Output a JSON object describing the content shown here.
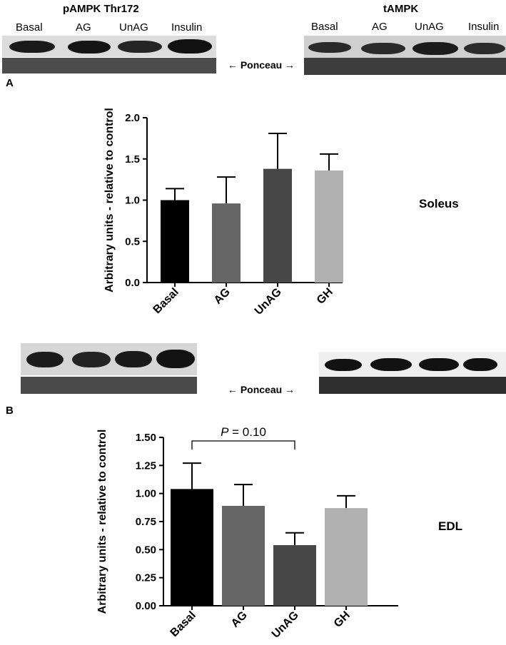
{
  "top_blots": {
    "left_title": "pAMPK Thr172",
    "right_title": "tAMPK",
    "left_lanes": [
      "Basal",
      "AG",
      "UnAG",
      "Insulin"
    ],
    "right_lanes": [
      "Basal",
      "AG",
      "UnAG",
      "Insulin"
    ],
    "ponceau_label": "Ponceau"
  },
  "bottom_blots": {
    "ponceau_label": "Ponceau"
  },
  "chart_data": [
    {
      "panel": "A",
      "type": "bar",
      "label": "Soleus",
      "categories": [
        "Basal",
        "AG",
        "UnAG",
        "GH"
      ],
      "values": [
        1.0,
        0.96,
        1.38,
        1.36
      ],
      "errors": [
        0.14,
        0.32,
        0.43,
        0.2
      ],
      "colors": [
        "#000000",
        "#666666",
        "#474747",
        "#b0b0b0"
      ],
      "ylabel": "Arbitrary units - relative to control",
      "ylim": [
        0,
        2.0
      ],
      "yticks": [
        "0.0",
        "0.5",
        "1.0",
        "1.5",
        "2.0"
      ],
      "ytick_values": [
        0,
        0.5,
        1.0,
        1.5,
        2.0
      ]
    },
    {
      "panel": "B",
      "type": "bar",
      "label": "EDL",
      "categories": [
        "Basal",
        "AG",
        "UnAG",
        "GH"
      ],
      "values": [
        1.04,
        0.89,
        0.54,
        0.87
      ],
      "errors": [
        0.23,
        0.19,
        0.11,
        0.11
      ],
      "colors": [
        "#000000",
        "#666666",
        "#474747",
        "#b0b0b0"
      ],
      "ylabel": "Arbitrary units - relative to control",
      "ylim": [
        0,
        1.5
      ],
      "yticks": [
        "0.00",
        "0.25",
        "0.50",
        "0.75",
        "1.00",
        "1.25",
        "1.50"
      ],
      "ytick_values": [
        0,
        0.25,
        0.5,
        0.75,
        1.0,
        1.25,
        1.5
      ],
      "annotation": {
        "p_symbol": "P",
        "p_text": " = 0.10",
        "from": "Basal",
        "to": "UnAG"
      }
    }
  ]
}
